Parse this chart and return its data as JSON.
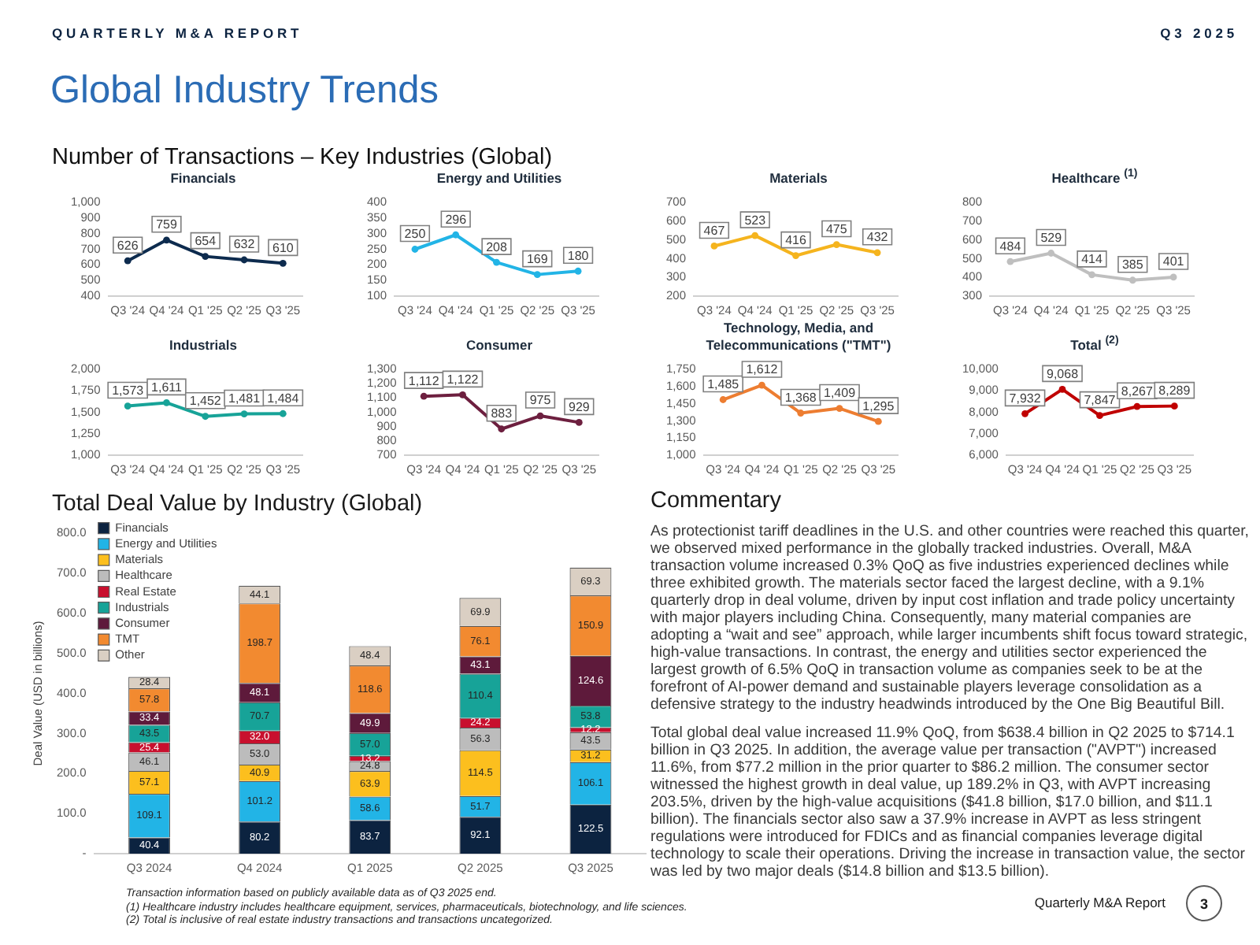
{
  "chart_data": [
    {
      "type": "other",
      "title": "Global Industry Trends",
      "subtitle": "Number of Transactions – Key Industries (Global)",
      "annotations": [
        "QUARTERLY M&A REPORT",
        "Q3 2025"
      ]
    },
    {
      "type": "line",
      "title": "Financials",
      "categories": [
        "Q3 '24",
        "Q4 '24",
        "Q1 '25",
        "Q2 '25",
        "Q3 '25"
      ],
      "values": [
        626,
        759,
        654,
        632,
        610
      ],
      "value_labels": [
        "626",
        "759",
        "654",
        "632",
        "610"
      ],
      "color": "#0d2b4e",
      "ylim": [
        400,
        1000
      ],
      "yticks": [
        400,
        500,
        600,
        700,
        800,
        900,
        {
          "value": 1000,
          "label": "1,000"
        }
      ],
      "marker": "circle",
      "grid": false,
      "legend": false
    },
    {
      "type": "line",
      "title": "Energy and Utilities",
      "categories": [
        "Q3 '24",
        "Q4 '24",
        "Q1 '25",
        "Q2 '25",
        "Q3 '25"
      ],
      "values": [
        250,
        296,
        208,
        169,
        180
      ],
      "value_labels": [
        "250",
        "296",
        "208",
        "169",
        "180"
      ],
      "color": "#22b4e6",
      "ylim": [
        100,
        400
      ],
      "yticks": [
        100,
        150,
        200,
        250,
        300,
        350,
        400
      ],
      "marker": "circle",
      "grid": false,
      "legend": false
    },
    {
      "type": "line",
      "title": "Materials",
      "categories": [
        "Q3 '24",
        "Q4 '24",
        "Q1 '25",
        "Q2 '25",
        "Q3 '25"
      ],
      "values": [
        467,
        523,
        416,
        475,
        432
      ],
      "value_labels": [
        "467",
        "523",
        "416",
        "475",
        "432"
      ],
      "color": "#f5b41e",
      "ylim": [
        200,
        700
      ],
      "yticks": [
        200,
        300,
        400,
        500,
        600,
        700
      ],
      "marker": "circle",
      "grid": false,
      "legend": false
    },
    {
      "type": "line",
      "title": "Healthcare $^{(1)}$",
      "categories": [
        "Q3 '24",
        "Q4 '24",
        "Q1 '25",
        "Q2 '25",
        "Q3 '25"
      ],
      "values": [
        484,
        529,
        414,
        385,
        401
      ],
      "value_labels": [
        "484",
        "529",
        "414",
        "385",
        "401"
      ],
      "color": "#bfbfbf",
      "ylim": [
        300,
        800
      ],
      "yticks": [
        300,
        400,
        500,
        600,
        700,
        800
      ],
      "marker": "circle",
      "grid": false,
      "legend": false
    },
    {
      "type": "line",
      "title": "Industrials",
      "categories": [
        "Q3 '24",
        "Q4 '24",
        "Q1 '25",
        "Q2 '25",
        "Q3 '25"
      ],
      "values": [
        1573,
        1611,
        1452,
        1481,
        1484
      ],
      "value_labels": [
        "1,573",
        "1,611",
        "1,452",
        "1,481",
        "1,484"
      ],
      "color": "#17a398",
      "ylim": [
        1000,
        2000
      ],
      "yticks": [
        {
          "value": 1000,
          "label": "1,000"
        },
        {
          "value": 1250,
          "label": "1,250"
        },
        {
          "value": 1500,
          "label": "1,500"
        },
        {
          "value": 1750,
          "label": "1,750"
        },
        {
          "value": 2000,
          "label": "2,000"
        }
      ],
      "marker": "circle",
      "grid": false,
      "legend": false
    },
    {
      "type": "line",
      "title": "Consumer",
      "categories": [
        "Q3 '24",
        "Q4 '24",
        "Q1 '25",
        "Q2 '25",
        "Q3 '25"
      ],
      "values": [
        1112,
        1122,
        883,
        975,
        929
      ],
      "value_labels": [
        "1,112",
        "1,122",
        "883",
        "975",
        "929"
      ],
      "color": "#6d1f3f",
      "ylim": [
        700,
        1300
      ],
      "yticks": [
        700,
        800,
        900,
        {
          "value": 1000,
          "label": "1,000"
        },
        {
          "value": 1100,
          "label": "1,100"
        },
        {
          "value": 1200,
          "label": "1,200"
        },
        {
          "value": 1300,
          "label": "1,300"
        }
      ],
      "marker": "circle",
      "grid": false,
      "legend": false
    },
    {
      "type": "line",
      "title": "Technology, Media, and Telecommunications (\"TMT\")",
      "categories": [
        "Q3 '24",
        "Q4 '24",
        "Q1 '25",
        "Q2 '25",
        "Q3 '25"
      ],
      "values": [
        1485,
        1612,
        1368,
        1409,
        1295
      ],
      "value_labels": [
        "1,485",
        "1,612",
        "1,368",
        "1,409",
        "1,295"
      ],
      "color": "#ed7d31",
      "ylim": [
        1000,
        1750
      ],
      "yticks": [
        {
          "value": 1000,
          "label": "1,000"
        },
        {
          "value": 1150,
          "label": "1,150"
        },
        {
          "value": 1300,
          "label": "1,300"
        },
        {
          "value": 1450,
          "label": "1,450"
        },
        {
          "value": 1600,
          "label": "1,600"
        },
        {
          "value": 1750,
          "label": "1,750"
        }
      ],
      "marker": "circle",
      "grid": false,
      "legend": false
    },
    {
      "type": "line",
      "title": "Total $^{(2)}$",
      "categories": [
        "Q3 '24",
        "Q4 '24",
        "Q1 '25",
        "Q2 '25",
        "Q3 '25"
      ],
      "values": [
        7932,
        9068,
        7847,
        8267,
        8289
      ],
      "value_labels": [
        "7,932",
        "9,068",
        "7,847",
        "8,267",
        "8,289"
      ],
      "color": "#c00000",
      "ylim": [
        6000,
        10000
      ],
      "yticks": [
        {
          "value": 6000,
          "label": "6,000"
        },
        {
          "value": 7000,
          "label": "7,000"
        },
        {
          "value": 8000,
          "label": "8,000"
        },
        {
          "value": 9000,
          "label": "9,000"
        },
        {
          "value": 10000,
          "label": "10,000"
        }
      ],
      "marker": "circle",
      "grid": false,
      "legend": false
    },
    {
      "type": "bar",
      "stacked": true,
      "title": "Total Deal Value by Industry (Global)",
      "ylabel": "Deal Value (USD in billions)",
      "categories": [
        "Q3 2024",
        "Q4 2024",
        "Q1 2025",
        "Q2 2025",
        "Q3 2025"
      ],
      "series": [
        {
          "name": "Financials",
          "color": "#0c2340",
          "values": [
            40.4,
            80.2,
            83.7,
            92.1,
            122.5
          ],
          "value_labels": [
            "40.4",
            "80.2",
            "83.7",
            "92.1",
            "122.5"
          ]
        },
        {
          "name": "Energy and Utilities",
          "color": "#22b4e6",
          "values": [
            109.1,
            101.2,
            58.6,
            51.7,
            106.1
          ],
          "value_labels": [
            "109.1",
            "101.2",
            "58.6",
            "51.7",
            "106.1"
          ]
        },
        {
          "name": "Materials",
          "color": "#fcbf1e",
          "values": [
            57.1,
            40.9,
            63.9,
            114.5,
            31.2
          ],
          "value_labels": [
            "57.1",
            "40.9",
            "63.9",
            "114.5",
            "31.2"
          ]
        },
        {
          "name": "Healthcare",
          "color": "#bcbcbc",
          "values": [
            46.1,
            53.0,
            24.8,
            56.3,
            43.5
          ],
          "value_labels": [
            "46.1",
            "53.0",
            "24.8",
            "56.3",
            "43.5"
          ]
        },
        {
          "name": "Real Estate",
          "color": "#c8102e",
          "values": [
            25.4,
            32.0,
            13.2,
            24.2,
            12.2
          ],
          "value_labels": [
            "25.4",
            "32.0",
            "13.2",
            "24.2",
            "12.2"
          ]
        },
        {
          "name": "Industrials",
          "color": "#17a398",
          "values": [
            43.5,
            70.7,
            57.0,
            110.4,
            53.8
          ],
          "value_labels": [
            "43.5",
            "70.7",
            "57.0",
            "110.4",
            "53.8"
          ]
        },
        {
          "name": "Consumer",
          "color": "#5e1a3b",
          "values": [
            33.4,
            48.1,
            49.9,
            43.1,
            124.6
          ],
          "value_labels": [
            "33.4",
            "48.1",
            "49.9",
            "43.1",
            "124.6"
          ]
        },
        {
          "name": "TMT",
          "color": "#f28a30",
          "values": [
            57.8,
            198.7,
            118.6,
            76.1,
            150.9
          ],
          "value_labels": [
            "57.8",
            "198.7",
            "118.6",
            "76.1",
            "150.9"
          ]
        },
        {
          "name": "Other",
          "color": "#dacfc3",
          "values": [
            28.4,
            44.1,
            48.4,
            69.9,
            69.3
          ],
          "value_labels": [
            "28.4",
            "44.1",
            "48.4",
            "69.9",
            "69.3"
          ]
        }
      ],
      "ylim": [
        0,
        800
      ],
      "yticks": [
        {
          "value": 0,
          "label": "-"
        },
        {
          "value": 100,
          "label": "100.0"
        },
        {
          "value": 200,
          "label": "200.0"
        },
        {
          "value": 300,
          "label": "300.0"
        },
        {
          "value": 400,
          "label": "400.0"
        },
        {
          "value": 500,
          "label": "500.0"
        },
        {
          "value": 600,
          "label": "600.0"
        },
        {
          "value": 700,
          "label": "700.0"
        },
        {
          "value": 800,
          "label": "800.0"
        }
      ],
      "legend": "top left",
      "grid": false
    },
    {
      "type": "other",
      "title": "Commentary",
      "annotations": [
        "As protectionist tariff deadlines in the U.S. and other countries were reached this quarter, we observed mixed performance in the globally tracked industries. Overall, M&A transaction volume increased 0.3% QoQ as five industries experienced declines while three exhibited growth. The materials sector faced the largest decline, with a 9.1% quarterly drop in deal volume, driven by input cost inflation and trade policy uncertainty with major players including China. Consequently, many material companies are adopting a “wait and see” approach, while larger incumbents shift focus toward strategic, high-value transactions. In contrast, the energy and utilities sector experienced the largest growth of 6.5% QoQ in transaction volume as companies seek to be at the forefront of AI-power demand and sustainable players leverage consolidation as a defensive strategy to the industry headwinds introduced by the One Big Beautiful Bill.",
        "Total global deal value increased 11.9% QoQ, from $638.4 billion in Q2 2025 to $714.1 billion in Q3 2025. In addition, the average value per transaction (\"AVPT\") increased 11.6%, from $77.2 million in the prior quarter to $86.2 million. The consumer sector witnessed the highest growth in deal value, up 189.2% in Q3, with AVPT increasing 203.5%, driven by the high-value acquisitions ($41.8 billion, $17.0 billion, and $11.1 billion). The financials sector also saw a 37.9% increase in AVPT as less stringent regulations were introduced for FDICs and as financial companies leverage digital technology to scale their operations. Driving the increase in transaction value, the sector was led by two major deals ($14.8 billion and $13.5 billion)."
      ]
    },
    {
      "type": "other",
      "annotations": [
        "Transaction information based on publicly available data as of Q3 2025 end.",
        "(1) Healthcare industry includes healthcare equipment, services, pharmaceuticals, biotechnology, and life sciences.",
        "(2) Total is inclusive of real estate industry transactions and transactions uncategorized.",
        "Quarterly M&A Report",
        "3"
      ]
    }
  ]
}
